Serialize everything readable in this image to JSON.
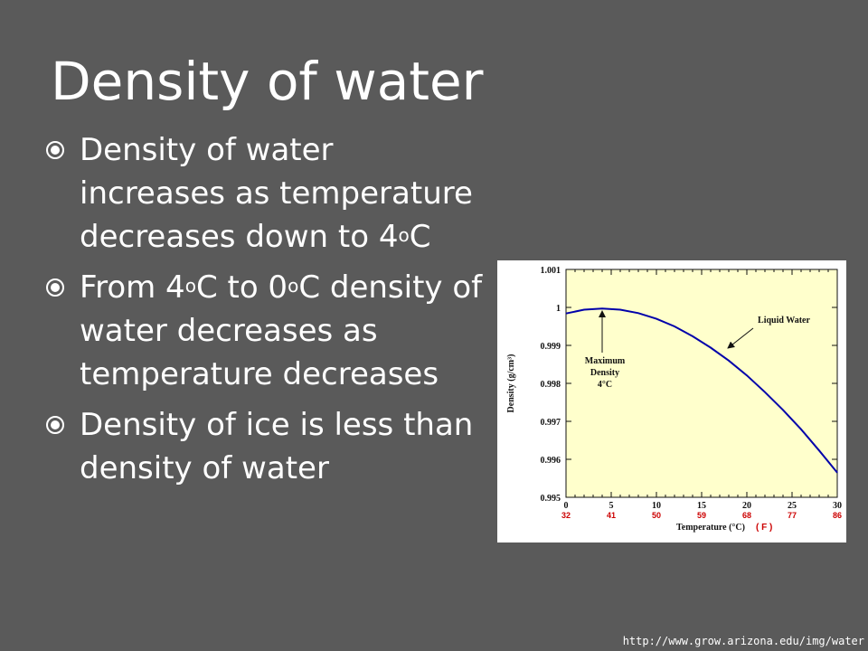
{
  "slide": {
    "title": "Density of water",
    "bullets": [
      {
        "parts": [
          "Density of water increases as temperature decreases down to 4",
          "o",
          "C"
        ]
      },
      {
        "parts": [
          "From 4",
          "o",
          "C to 0",
          "o",
          "C density of water decreases as temperature decreases"
        ]
      },
      {
        "parts": [
          "Density of ice is less than density of water"
        ]
      }
    ],
    "bullet_icon": "target-bullet-icon",
    "credit": "http://www.grow.arizona.edu/img/water"
  },
  "colors": {
    "background": "#5a5a5a",
    "text": "#ffffff",
    "plot_bg": "#ffffcc",
    "curve": "#0000aa",
    "fahrenheit": "#cc0000"
  },
  "chart_data": {
    "type": "line",
    "ylabel": "Density (g/cm³)",
    "xlabel": "Temperature (°C)",
    "xlabel_f": "( F )",
    "xlim": [
      0,
      30
    ],
    "ylim": [
      0.995,
      1.001
    ],
    "x_ticks": [
      "0",
      "5",
      "10",
      "15",
      "20",
      "25",
      "30"
    ],
    "f_ticks": [
      "32",
      "41",
      "50",
      "59",
      "68",
      "77",
      "86"
    ],
    "y_ticks": [
      "0.995",
      "0.996",
      "0.997",
      "0.998",
      "0.999",
      "1",
      "1.001"
    ],
    "series": [
      {
        "x": [
          0,
          2,
          4,
          6,
          8,
          10,
          12,
          14,
          16,
          18,
          20,
          22,
          24,
          26,
          28,
          30
        ],
        "y": [
          0.99984,
          0.99994,
          0.99997,
          0.99994,
          0.99985,
          0.9997,
          0.9995,
          0.99924,
          0.99894,
          0.9986,
          0.99821,
          0.99777,
          0.9973,
          0.99679,
          0.99623,
          0.99565
        ]
      }
    ],
    "annotations": [
      {
        "lines": [
          "Maximum",
          "Density",
          "4°C"
        ],
        "x": 4,
        "y": 1.0
      },
      {
        "lines": [
          "Liquid Water"
        ],
        "x": 17.5,
        "y": 0.99888
      }
    ]
  }
}
